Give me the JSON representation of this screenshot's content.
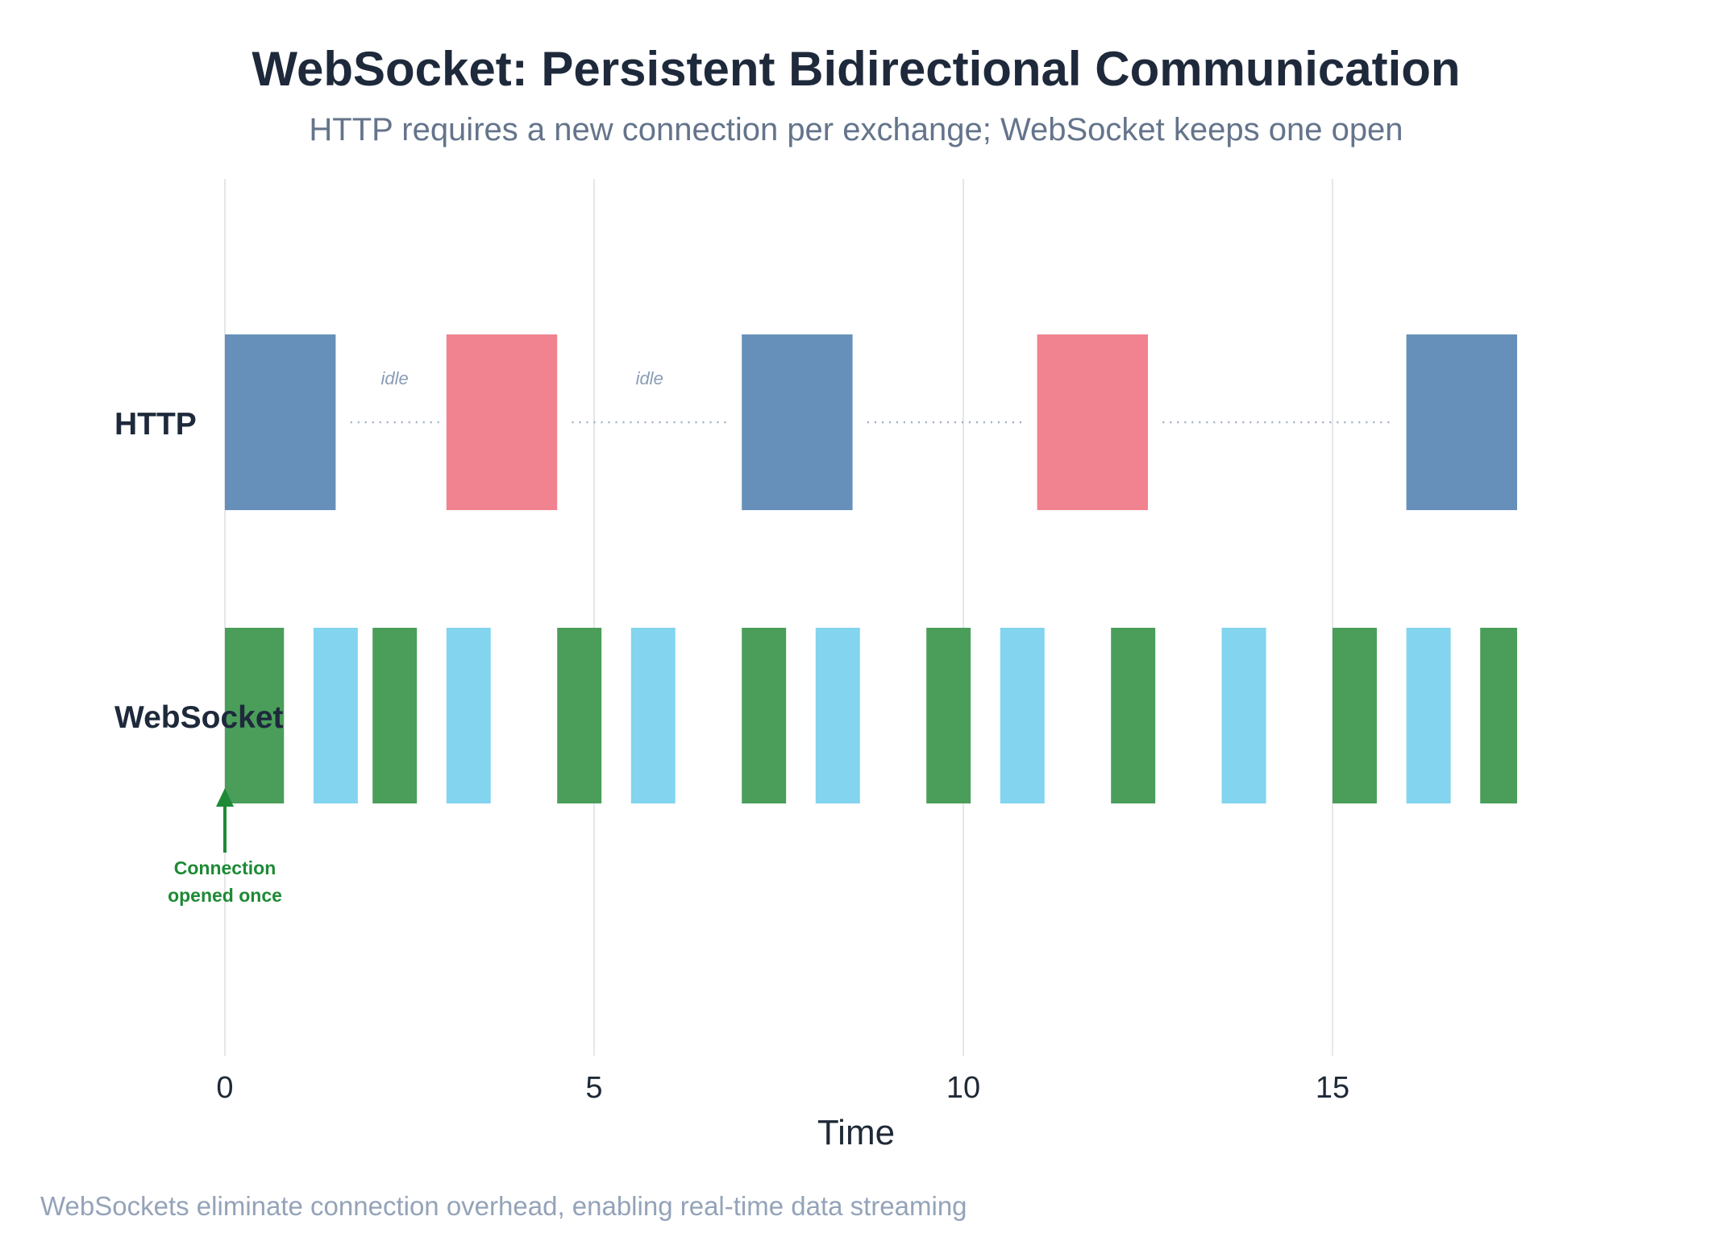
{
  "chart_data": {
    "type": "bar",
    "title": "WebSocket: Persistent Bidirectional Communication",
    "subtitle": "HTTP requires a new connection per exchange; WebSocket keeps one open",
    "xlabel": "Time",
    "xlim": [
      0,
      17.5
    ],
    "xticks": [
      0,
      5,
      10,
      15
    ],
    "grid": true,
    "rows": [
      {
        "name": "HTTP",
        "segments": [
          {
            "start": 0.0,
            "end": 1.5,
            "kind": "request"
          },
          {
            "start": 3.0,
            "end": 4.5,
            "kind": "response"
          },
          {
            "start": 7.0,
            "end": 8.5,
            "kind": "request"
          },
          {
            "start": 11.0,
            "end": 12.5,
            "kind": "response"
          },
          {
            "start": 16.0,
            "end": 17.5,
            "kind": "request"
          }
        ],
        "gaps": [
          {
            "start": 1.7,
            "end": 2.9,
            "label": "idle"
          },
          {
            "start": 4.7,
            "end": 6.8,
            "label": "idle"
          },
          {
            "start": 8.7,
            "end": 10.8,
            "label": ""
          },
          {
            "start": 12.7,
            "end": 15.8,
            "label": ""
          }
        ]
      },
      {
        "name": "WebSocket",
        "segments": [
          {
            "start": 0.0,
            "end": 0.8,
            "kind": "send"
          },
          {
            "start": 1.2,
            "end": 1.8,
            "kind": "receive"
          },
          {
            "start": 2.0,
            "end": 2.6,
            "kind": "send"
          },
          {
            "start": 3.0,
            "end": 3.6,
            "kind": "receive"
          },
          {
            "start": 4.5,
            "end": 5.1,
            "kind": "send"
          },
          {
            "start": 5.5,
            "end": 6.1,
            "kind": "receive"
          },
          {
            "start": 7.0,
            "end": 7.6,
            "kind": "send"
          },
          {
            "start": 8.0,
            "end": 8.6,
            "kind": "receive"
          },
          {
            "start": 9.5,
            "end": 10.1,
            "kind": "send"
          },
          {
            "start": 10.5,
            "end": 11.1,
            "kind": "receive"
          },
          {
            "start": 12.0,
            "end": 12.6,
            "kind": "send"
          },
          {
            "start": 13.5,
            "end": 14.1,
            "kind": "receive"
          },
          {
            "start": 15.0,
            "end": 15.6,
            "kind": "send"
          },
          {
            "start": 16.0,
            "end": 16.6,
            "kind": "receive"
          },
          {
            "start": 17.0,
            "end": 17.5,
            "kind": "send"
          }
        ]
      }
    ],
    "colors": {
      "request": "#6690ba",
      "response": "#f0838f",
      "send": "#4a9e5a",
      "receive": "#82d4ef",
      "gap_dots": "#a0aec0",
      "grid": "#e5e7eb",
      "annotation": "#1e8a36"
    },
    "annotation": {
      "at": 0,
      "lines": [
        "Connection",
        "opened once"
      ]
    },
    "footnote": "WebSockets eliminate connection overhead, enabling real-time data streaming"
  }
}
